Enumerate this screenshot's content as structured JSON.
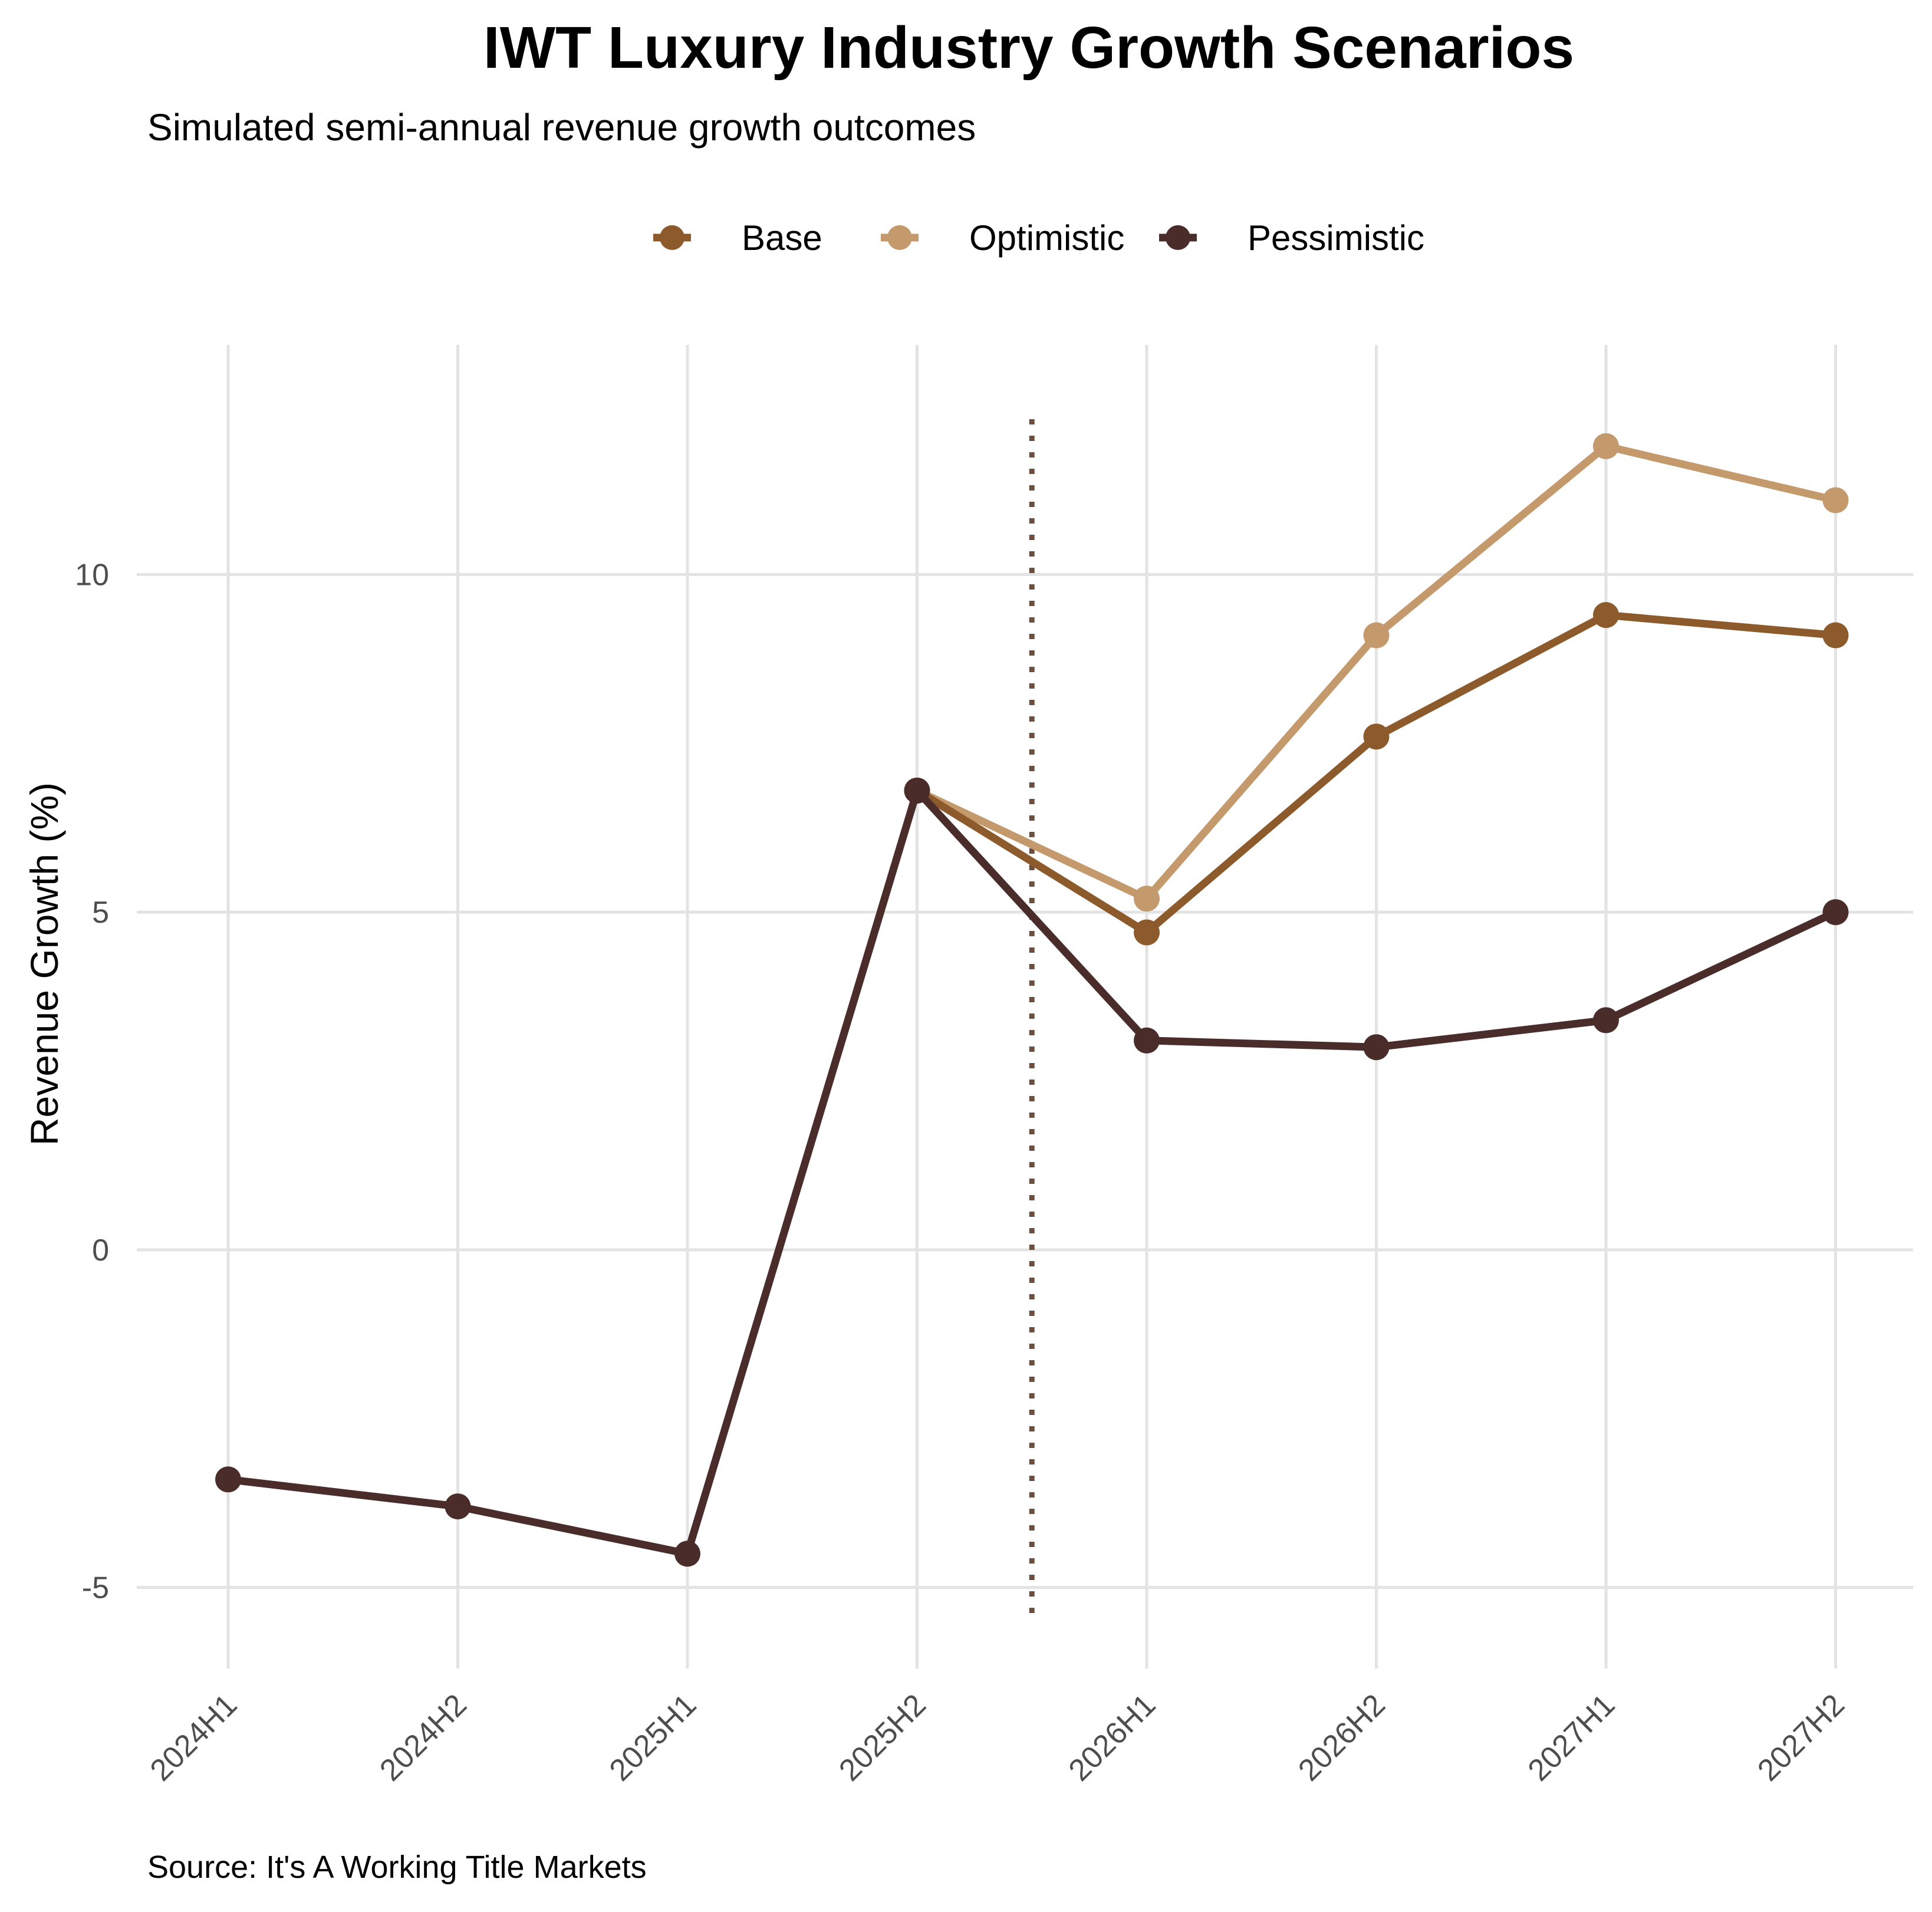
{
  "chart_data": {
    "type": "line",
    "title": "IWT Luxury Industry Growth Scenarios",
    "subtitle": "Simulated semi-annual revenue growth outcomes",
    "caption": "Source: It's A Working Title Markets",
    "xlabel": "",
    "ylabel": "Revenue Growth (%)",
    "categories": [
      "2024H1",
      "2024H2",
      "2025H1",
      "2025H2",
      "2026H1",
      "2026H2",
      "2027H1",
      "2027H2"
    ],
    "yticks": [
      -5,
      0,
      5,
      10
    ],
    "ylim": [
      -6.2,
      13.4
    ],
    "forecast_marker": {
      "x_index": 3.5,
      "y_from": -5.5,
      "y_to": 12.3,
      "color": "#6b4f3f"
    },
    "series": [
      {
        "name": "Base",
        "color": "#8c5a2b",
        "values": [
          null,
          null,
          null,
          6.8,
          4.7,
          7.6,
          9.4,
          9.1
        ]
      },
      {
        "name": "Optimistic",
        "color": "#c49a6c",
        "values": [
          null,
          null,
          null,
          6.8,
          5.2,
          9.1,
          11.9,
          11.1
        ]
      },
      {
        "name": "Pessimistic",
        "color": "#4a2c2a",
        "values": [
          -3.4,
          -3.8,
          -4.5,
          6.8,
          3.1,
          3.0,
          3.4,
          5.0
        ]
      }
    ],
    "legend_position": "top",
    "grid": true
  }
}
